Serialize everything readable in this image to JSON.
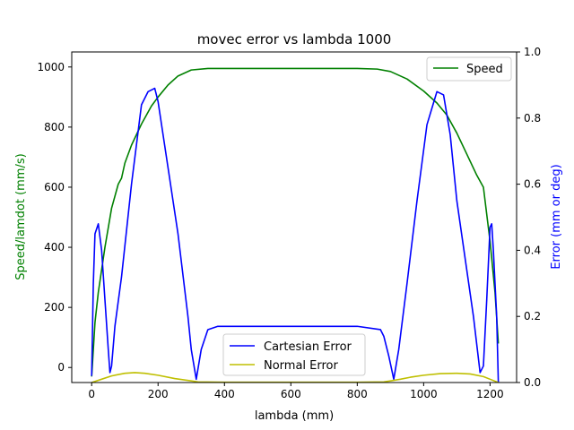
{
  "chart_data": {
    "type": "line",
    "title": "movec error vs lambda 1000",
    "xlabel": "lambda (mm)",
    "ylabel_left": "Speed/lamdot (mm/s)",
    "ylabel_right": "Error (mm or deg)",
    "xlim": [
      -60,
      1280
    ],
    "ylim_left": [
      -50,
      1050
    ],
    "ylim_right": [
      0,
      1.0
    ],
    "x_ticks": [
      0,
      200,
      400,
      600,
      800,
      1000,
      1200
    ],
    "y_ticks_left": [
      0,
      200,
      400,
      600,
      800,
      1000
    ],
    "y_ticks_right": [
      0.0,
      0.2,
      0.4,
      0.6,
      0.8,
      1.0
    ],
    "grid": false,
    "colors": {
      "speed": "#008000",
      "cartesian": "#0000ff",
      "normal": "#bfbf00",
      "left_label": "#008000",
      "right_label": "#0000ff"
    },
    "series": [
      {
        "name": "Speed",
        "axis": "left",
        "x": [
          0,
          10,
          20,
          40,
          60,
          80,
          90,
          100,
          120,
          150,
          180,
          200,
          230,
          260,
          300,
          350,
          400,
          600,
          800,
          860,
          900,
          950,
          1000,
          1040,
          1070,
          1100,
          1130,
          1160,
          1180,
          1200,
          1215,
          1225
        ],
        "y": [
          -30,
          150,
          250,
          400,
          530,
          610,
          630,
          680,
          740,
          810,
          870,
          900,
          940,
          970,
          990,
          995,
          995,
          995,
          995,
          993,
          985,
          960,
          920,
          880,
          840,
          780,
          710,
          640,
          600,
          420,
          250,
          80
        ]
      },
      {
        "name": "Cartesian Error",
        "axis": "right",
        "x": [
          0,
          5,
          10,
          20,
          30,
          40,
          50,
          55,
          60,
          70,
          90,
          120,
          150,
          170,
          190,
          200,
          230,
          260,
          290,
          300,
          315,
          330,
          350,
          380,
          400,
          600,
          800,
          870,
          880,
          895,
          910,
          925,
          950,
          980,
          1010,
          1040,
          1060,
          1080,
          1100,
          1150,
          1170,
          1180,
          1190,
          1200,
          1205,
          1210,
          1220,
          1225
        ],
        "y": [
          0.02,
          0.3,
          0.45,
          0.48,
          0.4,
          0.25,
          0.1,
          0.03,
          0.05,
          0.17,
          0.32,
          0.6,
          0.84,
          0.88,
          0.89,
          0.85,
          0.65,
          0.45,
          0.2,
          0.1,
          0.01,
          0.1,
          0.16,
          0.17,
          0.17,
          0.17,
          0.17,
          0.16,
          0.14,
          0.08,
          0.01,
          0.1,
          0.3,
          0.55,
          0.78,
          0.88,
          0.87,
          0.75,
          0.55,
          0.2,
          0.03,
          0.05,
          0.25,
          0.47,
          0.48,
          0.4,
          0.2,
          0.0
        ]
      },
      {
        "name": "Normal Error",
        "axis": "right",
        "x": [
          0,
          30,
          60,
          100,
          130,
          160,
          200,
          250,
          300,
          320,
          400,
          600,
          800,
          880,
          900,
          930,
          960,
          1000,
          1050,
          1100,
          1140,
          1180,
          1200,
          1225
        ],
        "y": [
          0.0,
          0.01,
          0.02,
          0.028,
          0.03,
          0.028,
          0.022,
          0.012,
          0.005,
          0.002,
          0.001,
          0.001,
          0.001,
          0.002,
          0.005,
          0.01,
          0.016,
          0.022,
          0.027,
          0.028,
          0.026,
          0.018,
          0.01,
          0.0
        ]
      }
    ],
    "legends": [
      {
        "position": "upper right",
        "entries": [
          "Speed"
        ]
      },
      {
        "position": "lower center",
        "entries": [
          "Cartesian Error",
          "Normal Error"
        ]
      }
    ]
  }
}
